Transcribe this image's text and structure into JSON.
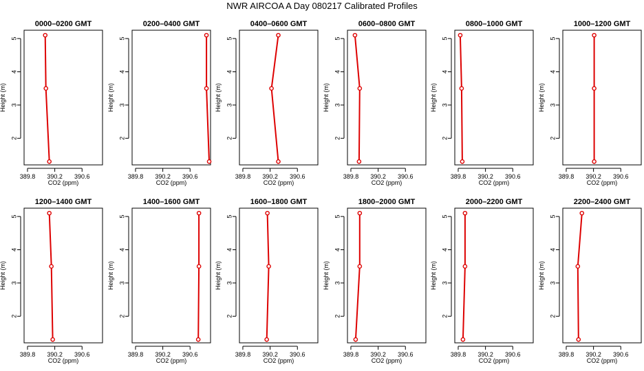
{
  "title": "NWR AIRCOA A  Day 080217  Calibrated Profiles",
  "colors": {
    "profile": "#dd0000",
    "axis": "#000000"
  },
  "chart_data": [
    {
      "type": "line",
      "title": "0000–0200 GMT",
      "xlabel": "CO2 (ppm)",
      "ylabel": "Height (m)",
      "xlim": [
        389.75,
        390.9
      ],
      "ylim": [
        1.2,
        5.25
      ],
      "xticks": [
        389.8,
        390.2,
        390.6
      ],
      "xtick_labels": [
        "389.8",
        "390.2",
        "390.6"
      ],
      "yticks": [
        2,
        3,
        4,
        5
      ],
      "ytick_labels": [
        "2",
        "3",
        "4",
        "5"
      ],
      "series": [
        {
          "x": [
            390.12,
            390.07,
            390.06
          ],
          "y": [
            1.3,
            3.5,
            5.1
          ]
        }
      ]
    },
    {
      "type": "line",
      "title": "0200–0400 GMT",
      "xlabel": "CO2 (ppm)",
      "ylabel": "Height (m)",
      "xlim": [
        389.75,
        390.9
      ],
      "ylim": [
        1.2,
        5.25
      ],
      "xticks": [
        389.8,
        390.2,
        390.6
      ],
      "xtick_labels": [
        "389.8",
        "390.2",
        "390.6"
      ],
      "yticks": [
        2,
        3,
        4,
        5
      ],
      "ytick_labels": [
        "2",
        "3",
        "4",
        "5"
      ],
      "series": [
        {
          "x": [
            390.88,
            390.84,
            390.84
          ],
          "y": [
            1.3,
            3.5,
            5.1
          ]
        }
      ]
    },
    {
      "type": "line",
      "title": "0400–0600 GMT",
      "xlabel": "CO2 (ppm)",
      "ylabel": "Height (m)",
      "xlim": [
        389.75,
        390.9
      ],
      "ylim": [
        1.2,
        5.25
      ],
      "xticks": [
        389.8,
        390.2,
        390.6
      ],
      "xtick_labels": [
        "389.8",
        "390.2",
        "390.6"
      ],
      "yticks": [
        2,
        3,
        4,
        5
      ],
      "ytick_labels": [
        "2",
        "3",
        "4",
        "5"
      ],
      "series": [
        {
          "x": [
            390.32,
            390.22,
            390.32
          ],
          "y": [
            1.3,
            3.5,
            5.1
          ]
        }
      ]
    },
    {
      "type": "line",
      "title": "0600–0800 GMT",
      "xlabel": "CO2 (ppm)",
      "ylabel": "Height (m)",
      "xlim": [
        389.75,
        390.9
      ],
      "ylim": [
        1.2,
        5.25
      ],
      "xticks": [
        389.8,
        390.2,
        390.6
      ],
      "xtick_labels": [
        "389.8",
        "390.2",
        "390.6"
      ],
      "yticks": [
        2,
        3,
        4,
        5
      ],
      "ytick_labels": [
        "2",
        "3",
        "4",
        "5"
      ],
      "series": [
        {
          "x": [
            389.92,
            389.93,
            389.86
          ],
          "y": [
            1.3,
            3.5,
            5.1
          ]
        }
      ]
    },
    {
      "type": "line",
      "title": "0800–1000 GMT",
      "xlabel": "CO2 (ppm)",
      "ylabel": "Height (m)",
      "xlim": [
        389.75,
        390.9
      ],
      "ylim": [
        1.2,
        5.25
      ],
      "xticks": [
        389.8,
        390.2,
        390.6
      ],
      "xtick_labels": [
        "389.8",
        "390.2",
        "390.6"
      ],
      "yticks": [
        2,
        3,
        4,
        5
      ],
      "ytick_labels": [
        "2",
        "3",
        "4",
        "5"
      ],
      "series": [
        {
          "x": [
            389.86,
            389.85,
            389.83
          ],
          "y": [
            1.3,
            3.5,
            5.1
          ]
        }
      ]
    },
    {
      "type": "line",
      "title": "1000–1200 GMT",
      "xlabel": "CO2 (ppm)",
      "ylabel": "Height (m)",
      "xlim": [
        389.75,
        390.9
      ],
      "ylim": [
        1.2,
        5.25
      ],
      "xticks": [
        389.8,
        390.2,
        390.6
      ],
      "xtick_labels": [
        "389.8",
        "390.2",
        "390.6"
      ],
      "yticks": [
        2,
        3,
        4,
        5
      ],
      "ytick_labels": [
        "2",
        "3",
        "4",
        "5"
      ],
      "series": [
        {
          "x": [
            390.21,
            390.21,
            390.21
          ],
          "y": [
            1.3,
            3.5,
            5.1
          ]
        }
      ]
    },
    {
      "type": "line",
      "title": "1200–1400 GMT",
      "xlabel": "CO2 (ppm)",
      "ylabel": "Height (m)",
      "xlim": [
        389.75,
        390.9
      ],
      "ylim": [
        1.2,
        5.25
      ],
      "xticks": [
        389.8,
        390.2,
        390.6
      ],
      "xtick_labels": [
        "389.8",
        "390.2",
        "390.6"
      ],
      "yticks": [
        2,
        3,
        4,
        5
      ],
      "ytick_labels": [
        "2",
        "3",
        "4",
        "5"
      ],
      "series": [
        {
          "x": [
            390.17,
            390.15,
            390.12
          ],
          "y": [
            1.3,
            3.5,
            5.1
          ]
        }
      ]
    },
    {
      "type": "line",
      "title": "1400–1600 GMT",
      "xlabel": "CO2 (ppm)",
      "ylabel": "Height (m)",
      "xlim": [
        389.75,
        390.9
      ],
      "ylim": [
        1.2,
        5.25
      ],
      "xticks": [
        389.8,
        390.2,
        390.6
      ],
      "xtick_labels": [
        "389.8",
        "390.2",
        "390.6"
      ],
      "yticks": [
        2,
        3,
        4,
        5
      ],
      "ytick_labels": [
        "2",
        "3",
        "4",
        "5"
      ],
      "series": [
        {
          "x": [
            390.72,
            390.73,
            390.73
          ],
          "y": [
            1.3,
            3.5,
            5.1
          ]
        }
      ]
    },
    {
      "type": "line",
      "title": "1600–1800 GMT",
      "xlabel": "CO2 (ppm)",
      "ylabel": "Height (m)",
      "xlim": [
        389.75,
        390.9
      ],
      "ylim": [
        1.2,
        5.25
      ],
      "xticks": [
        389.8,
        390.2,
        390.6
      ],
      "xtick_labels": [
        "389.8",
        "390.2",
        "390.6"
      ],
      "yticks": [
        2,
        3,
        4,
        5
      ],
      "ytick_labels": [
        "2",
        "3",
        "4",
        "5"
      ],
      "series": [
        {
          "x": [
            390.15,
            390.18,
            390.16
          ],
          "y": [
            1.3,
            3.5,
            5.1
          ]
        }
      ]
    },
    {
      "type": "line",
      "title": "1800–2000 GMT",
      "xlabel": "CO2 (ppm)",
      "ylabel": "Height (m)",
      "xlim": [
        389.75,
        390.9
      ],
      "ylim": [
        1.2,
        5.25
      ],
      "xticks": [
        389.8,
        390.2,
        390.6
      ],
      "xtick_labels": [
        "389.8",
        "390.2",
        "390.6"
      ],
      "yticks": [
        2,
        3,
        4,
        5
      ],
      "ytick_labels": [
        "2",
        "3",
        "4",
        "5"
      ],
      "series": [
        {
          "x": [
            389.87,
            389.93,
            389.93
          ],
          "y": [
            1.3,
            3.5,
            5.1
          ]
        }
      ]
    },
    {
      "type": "line",
      "title": "2000–2200 GMT",
      "xlabel": "CO2 (ppm)",
      "ylabel": "Height (m)",
      "xlim": [
        389.75,
        390.9
      ],
      "ylim": [
        1.2,
        5.25
      ],
      "xticks": [
        389.8,
        390.2,
        390.6
      ],
      "xtick_labels": [
        "389.8",
        "390.2",
        "390.6"
      ],
      "yticks": [
        2,
        3,
        4,
        5
      ],
      "ytick_labels": [
        "2",
        "3",
        "4",
        "5"
      ],
      "series": [
        {
          "x": [
            389.87,
            389.9,
            389.9
          ],
          "y": [
            1.3,
            3.5,
            5.1
          ]
        }
      ]
    },
    {
      "type": "line",
      "title": "2200–2400 GMT",
      "xlabel": "CO2 (ppm)",
      "ylabel": "Height (m)",
      "xlim": [
        389.75,
        390.9
      ],
      "ylim": [
        1.2,
        5.25
      ],
      "xticks": [
        389.8,
        390.2,
        390.6
      ],
      "xtick_labels": [
        "389.8",
        "390.2",
        "390.6"
      ],
      "yticks": [
        2,
        3,
        4,
        5
      ],
      "ytick_labels": [
        "2",
        "3",
        "4",
        "5"
      ],
      "series": [
        {
          "x": [
            389.98,
            389.97,
            390.03
          ],
          "y": [
            1.3,
            3.5,
            5.1
          ]
        }
      ]
    }
  ]
}
